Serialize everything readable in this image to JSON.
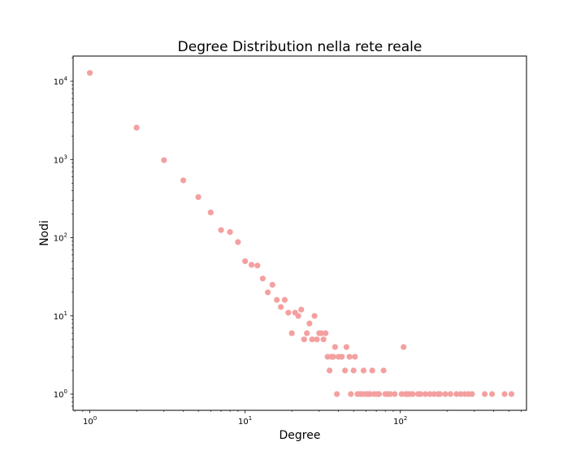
{
  "chart_data": {
    "type": "scatter",
    "title": "Degree Distribution nella rete reale",
    "xlabel": "Degree",
    "ylabel": "Nodi",
    "xscale": "log",
    "yscale": "log",
    "xlim": [
      0.78,
      650
    ],
    "ylim": [
      0.62,
      21000
    ],
    "x_ticks": [
      {
        "value": 1,
        "base": "10",
        "exp": "0"
      },
      {
        "value": 10,
        "base": "10",
        "exp": "1"
      },
      {
        "value": 100,
        "base": "10",
        "exp": "2"
      }
    ],
    "y_ticks": [
      {
        "value": 1,
        "base": "10",
        "exp": "0"
      },
      {
        "value": 10,
        "base": "10",
        "exp": "1"
      },
      {
        "value": 100,
        "base": "10",
        "exp": "2"
      },
      {
        "value": 1000,
        "base": "10",
        "exp": "3"
      },
      {
        "value": 10000,
        "base": "10",
        "exp": "4"
      }
    ],
    "grid": false,
    "legend": "none",
    "marker_color": "#f4a0a0",
    "points": [
      [
        1,
        12800
      ],
      [
        2,
        2550
      ],
      [
        3,
        980
      ],
      [
        4,
        540
      ],
      [
        5,
        330
      ],
      [
        6,
        210
      ],
      [
        7,
        125
      ],
      [
        8,
        118
      ],
      [
        9,
        88
      ],
      [
        10,
        50
      ],
      [
        11,
        45
      ],
      [
        12,
        44
      ],
      [
        13,
        30
      ],
      [
        14,
        20
      ],
      [
        15,
        25
      ],
      [
        16,
        16
      ],
      [
        17,
        13
      ],
      [
        18,
        16
      ],
      [
        19,
        11
      ],
      [
        20,
        6
      ],
      [
        21,
        11
      ],
      [
        22,
        10
      ],
      [
        23,
        12
      ],
      [
        24,
        5
      ],
      [
        25,
        6
      ],
      [
        26,
        8
      ],
      [
        27,
        5
      ],
      [
        28,
        10
      ],
      [
        29,
        5
      ],
      [
        30,
        6
      ],
      [
        31,
        6
      ],
      [
        32,
        5
      ],
      [
        33,
        6
      ],
      [
        34,
        3
      ],
      [
        35,
        2
      ],
      [
        36,
        3
      ],
      [
        37,
        3
      ],
      [
        38,
        4
      ],
      [
        39,
        1
      ],
      [
        40,
        3
      ],
      [
        42,
        3
      ],
      [
        44,
        2
      ],
      [
        45,
        4
      ],
      [
        47,
        3
      ],
      [
        48,
        1
      ],
      [
        50,
        2
      ],
      [
        51,
        3
      ],
      [
        53,
        1
      ],
      [
        55,
        1
      ],
      [
        57,
        1
      ],
      [
        58,
        2
      ],
      [
        60,
        1
      ],
      [
        62,
        1
      ],
      [
        64,
        1
      ],
      [
        66,
        2
      ],
      [
        68,
        1
      ],
      [
        71,
        1
      ],
      [
        73,
        1
      ],
      [
        78,
        2
      ],
      [
        80,
        1
      ],
      [
        83,
        1
      ],
      [
        86,
        1
      ],
      [
        92,
        1
      ],
      [
        102,
        1
      ],
      [
        105,
        4
      ],
      [
        108,
        1
      ],
      [
        111,
        1
      ],
      [
        115,
        1
      ],
      [
        120,
        1
      ],
      [
        130,
        1
      ],
      [
        135,
        1
      ],
      [
        145,
        1
      ],
      [
        155,
        1
      ],
      [
        165,
        1
      ],
      [
        175,
        1
      ],
      [
        180,
        1
      ],
      [
        195,
        1
      ],
      [
        210,
        1
      ],
      [
        230,
        1
      ],
      [
        245,
        1
      ],
      [
        260,
        1
      ],
      [
        275,
        1
      ],
      [
        290,
        1
      ],
      [
        350,
        1
      ],
      [
        390,
        1
      ],
      [
        470,
        1
      ],
      [
        520,
        1
      ]
    ]
  }
}
